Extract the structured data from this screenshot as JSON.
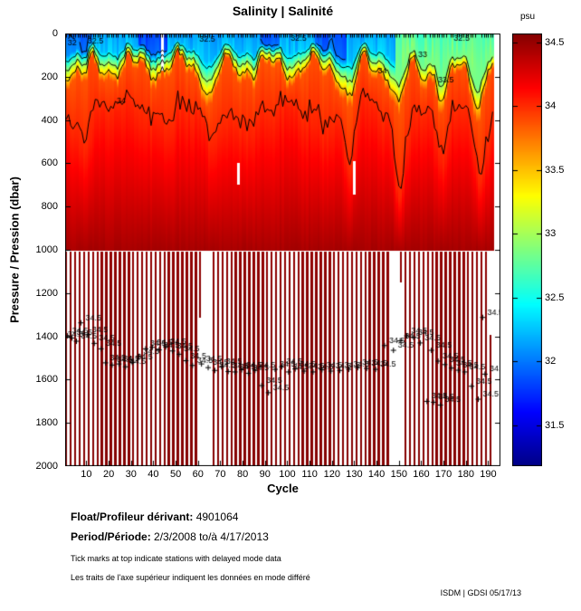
{
  "title": "Salinity | Salinité",
  "axes": {
    "ylabel": "Pressure / Pression (dbar)",
    "xlabel": "Cycle",
    "y_ticks": [
      0,
      200,
      400,
      600,
      800,
      1000,
      1200,
      1400,
      1600,
      1800,
      2000
    ],
    "x_ticks": [
      10,
      20,
      30,
      40,
      50,
      60,
      70,
      80,
      90,
      100,
      110,
      120,
      130,
      140,
      150,
      160,
      170,
      180,
      190
    ],
    "x_range": [
      1,
      192
    ],
    "y_range": [
      0,
      2000
    ]
  },
  "colorbar": {
    "unit_label": "psu",
    "ticks": [
      "34.5",
      "34",
      "33.5",
      "33",
      "32.5",
      "32",
      "31.5"
    ],
    "tick_values": [
      34.5,
      34,
      33.5,
      33,
      32.5,
      32,
      31.5
    ],
    "vmin": 31.18,
    "vmax": 34.57
  },
  "footer": {
    "float_label": "Float/Profileur dérivant:",
    "float_value": "4901064",
    "period_label": "Period/Période:",
    "period_value": "2/3/2008  to/à  4/17/2013",
    "note_en": "Tick marks at top indicate stations with delayed mode data",
    "note_fr": "Les traits de l'axe supérieur indiquent les données en mode différé",
    "credit": "ISDM | GDSI  05/17/13"
  },
  "chart_data": {
    "type": "heatmap",
    "title": "Salinity | Salinité",
    "xlabel": "Cycle",
    "ylabel": "Pressure / Pression (dbar)",
    "value_unit": "psu",
    "colormap": "jet",
    "value_range": [
      31.18,
      34.57
    ],
    "x_range": [
      1,
      192
    ],
    "y_range": [
      0,
      2000
    ],
    "x_tick_labels": [
      "10",
      "20",
      "30",
      "40",
      "50",
      "60",
      "70",
      "80",
      "90",
      "100",
      "110",
      "120",
      "130",
      "140",
      "150",
      "160",
      "170",
      "180",
      "190"
    ],
    "y_tick_labels": [
      "0",
      "200",
      "400",
      "600",
      "800",
      "1000",
      "1200",
      "1400",
      "1600",
      "1800",
      "2000"
    ],
    "colorbar_ticks": [
      "34.5",
      "34",
      "33.5",
      "33",
      "32.5",
      "32",
      "31.5"
    ],
    "profile_breakpoints": {
      "pressure": [
        0,
        80,
        150,
        200,
        260,
        420,
        1000,
        2000
      ],
      "salinity": [
        32.2,
        32.4,
        33.2,
        33.8,
        33.95,
        34.05,
        34.45,
        34.7
      ]
    },
    "surface_salinity_base": 32.15,
    "surface_salinity_right": 32.72,
    "surface_right_start_cycle": 149,
    "surface_fresh_patches": [
      {
        "cycle_range": [
          1,
          12
        ],
        "salinity": 31.95
      },
      {
        "cycle_range": [
          34,
          46
        ],
        "salinity": 31.8
      },
      {
        "cycle_range": [
          88,
          96
        ],
        "salinity": 31.85
      },
      {
        "cycle_range": [
          113,
          126
        ],
        "salinity": 31.9
      }
    ],
    "contour_levels": [
      32,
      32.5,
      33,
      33.5,
      34
    ],
    "contour_labels": [
      {
        "text": "32",
        "cycle": 4,
        "pressure": 40
      },
      {
        "text": "32.5",
        "cycle": 13,
        "pressure": 32
      },
      {
        "text": "32.5",
        "cycle": 63,
        "pressure": 25
      },
      {
        "text": "32.5",
        "cycle": 104,
        "pressure": 22
      },
      {
        "text": "32.5",
        "cycle": 177,
        "pressure": 20
      },
      {
        "text": "33",
        "cycle": 161,
        "pressure": 95
      },
      {
        "text": "33.5",
        "cycle": 170,
        "pressure": 215
      },
      {
        "text": "34",
        "cycle": 143,
        "pressure": 170
      },
      {
        "text": "34",
        "cycle": 26,
        "pressure": 310
      }
    ],
    "halocline_dips": [
      {
        "cycle": 8,
        "delta": 60
      },
      {
        "cycle": 66,
        "delta": 120
      },
      {
        "cycle": 128,
        "delta": 150
      },
      {
        "cycle": 150,
        "delta": 200
      },
      {
        "cycle": 170,
        "delta": 180
      },
      {
        "cycle": 186,
        "delta": 160
      }
    ],
    "deep_coverage_note": "below 1000 dbar data present on alternating (odd) cycles",
    "deep_salinity_range": [
      34.52,
      34.7
    ],
    "deep_missing_cycles": [
      63,
      65,
      147,
      149
    ],
    "deep_short_profiles": [
      {
        "cycle": 61,
        "max_pressure": 1310
      },
      {
        "cycle": 151,
        "max_pressure": 1150
      }
    ],
    "deep_partial_profiles": [
      {
        "cycle": 191,
        "min_pressure": 1390
      }
    ],
    "data_gaps": [
      {
        "cycle": 78,
        "pressure_range": [
          600,
          700
        ]
      },
      {
        "cycle": 130,
        "pressure_range": [
          590,
          745
        ]
      },
      {
        "cycle": 44,
        "pressure_range": [
          0,
          170
        ]
      }
    ],
    "deep_point_label": "34.5",
    "deep_points": [
      [
        2,
        1400
      ],
      [
        4,
        1385
      ],
      [
        6,
        1395
      ],
      [
        8,
        1410
      ],
      [
        10,
        1325
      ],
      [
        13,
        1380
      ],
      [
        16,
        1420
      ],
      [
        19,
        1445
      ],
      [
        21,
        1510
      ],
      [
        24,
        1520
      ],
      [
        27,
        1515
      ],
      [
        30,
        1528
      ],
      [
        33,
        1508
      ],
      [
        36,
        1480
      ],
      [
        39,
        1445
      ],
      [
        42,
        1438
      ],
      [
        45,
        1450
      ],
      [
        48,
        1436
      ],
      [
        51,
        1455
      ],
      [
        54,
        1470
      ],
      [
        57,
        1500
      ],
      [
        60,
        1522
      ],
      [
        64,
        1515
      ],
      [
        67,
        1532
      ],
      [
        70,
        1545
      ],
      [
        73,
        1528
      ],
      [
        76,
        1550
      ],
      [
        79,
        1552
      ],
      [
        82,
        1542
      ],
      [
        85,
        1558
      ],
      [
        88,
        1545
      ],
      [
        91,
        1615
      ],
      [
        94,
        1648
      ],
      [
        97,
        1540
      ],
      [
        100,
        1528
      ],
      [
        103,
        1552
      ],
      [
        106,
        1538
      ],
      [
        110,
        1548
      ],
      [
        114,
        1552
      ],
      [
        118,
        1542
      ],
      [
        122,
        1548
      ],
      [
        126,
        1545
      ],
      [
        130,
        1540
      ],
      [
        134,
        1532
      ],
      [
        138,
        1536
      ],
      [
        142,
        1540
      ],
      [
        146,
        1430
      ],
      [
        150,
        1452
      ],
      [
        153,
        1408
      ],
      [
        156,
        1385
      ],
      [
        159,
        1392
      ],
      [
        162,
        1418
      ],
      [
        165,
        1688
      ],
      [
        168,
        1692
      ],
      [
        171,
        1705
      ],
      [
        167,
        1452
      ],
      [
        170,
        1502
      ],
      [
        173,
        1518
      ],
      [
        176,
        1534
      ],
      [
        179,
        1544
      ],
      [
        182,
        1552
      ],
      [
        185,
        1618
      ],
      [
        188,
        1678
      ],
      [
        190,
        1300
      ],
      [
        191,
        1562
      ]
    ],
    "noise_seed": 42,
    "legend_position": "right-colorbar",
    "grid": false
  }
}
